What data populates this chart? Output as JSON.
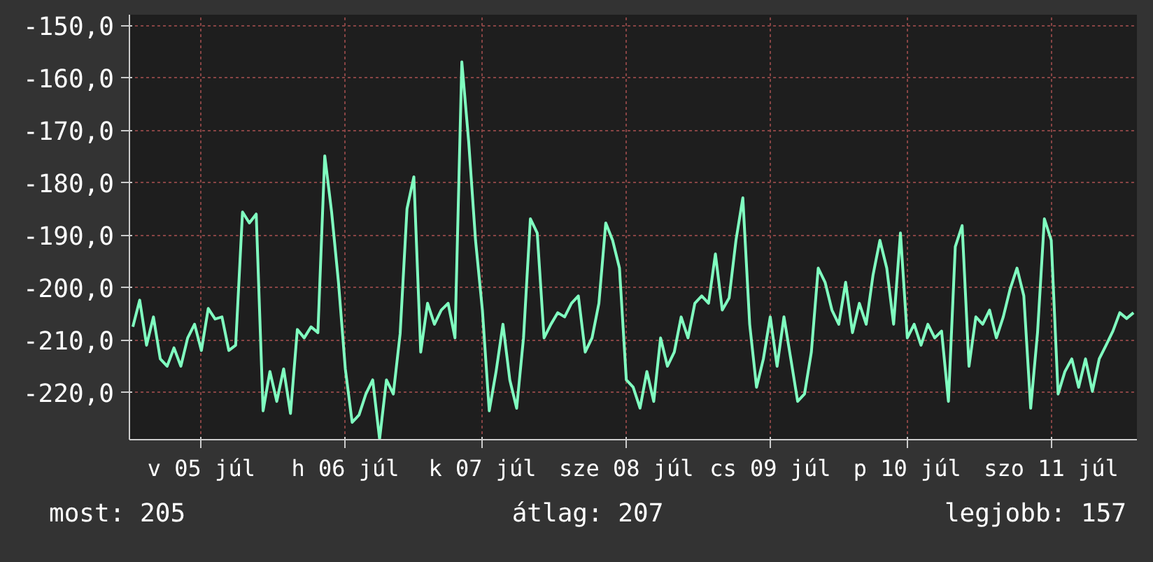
{
  "chart_data": {
    "type": "line",
    "grid": true,
    "line_style": "solid",
    "marker": "none",
    "ylim": [
      -229,
      -148
    ],
    "categories": [
      null,
      null,
      null,
      null,
      null,
      null,
      null,
      null,
      null,
      null,
      "v 05 júl",
      null,
      null,
      null,
      null,
      null,
      null,
      null,
      null,
      null,
      null,
      null,
      null,
      null,
      null,
      null,
      null,
      null,
      null,
      null,
      null,
      "h 06 júl",
      null,
      null,
      null,
      null,
      null,
      null,
      null,
      null,
      null,
      null,
      null,
      null,
      null,
      null,
      null,
      null,
      null,
      null,
      null,
      "k 07 júl",
      null,
      null,
      null,
      null,
      null,
      null,
      null,
      null,
      null,
      null,
      null,
      null,
      null,
      null,
      null,
      null,
      null,
      null,
      null,
      null,
      "sze 08 júl",
      null,
      null,
      null,
      null,
      null,
      null,
      null,
      null,
      null,
      null,
      null,
      null,
      null,
      null,
      null,
      null,
      null,
      null,
      null,
      null,
      "cs 09 júl",
      null,
      null,
      null,
      null,
      null,
      null,
      null,
      null,
      null,
      null,
      null,
      null,
      null,
      null,
      null,
      null,
      null,
      null,
      null,
      "p 10 júl",
      null,
      null,
      null,
      null,
      null,
      null,
      null,
      null,
      null,
      null,
      null,
      null,
      null,
      null,
      null,
      null,
      null,
      null,
      null,
      null,
      "szo 11 júl",
      null,
      null,
      null,
      null,
      null,
      null,
      null,
      null,
      null,
      null,
      null,
      null
    ],
    "yticks": [
      {
        "value": -150,
        "label": "-150,0"
      },
      {
        "value": -160,
        "label": "-160,0"
      },
      {
        "value": -170,
        "label": "-170,0"
      },
      {
        "value": -180,
        "label": "-180,0"
      },
      {
        "value": -190,
        "label": "-190,0"
      },
      {
        "value": -200,
        "label": "-200,0"
      },
      {
        "value": -210,
        "label": "-210,0"
      },
      {
        "value": -220,
        "label": "-220,0"
      }
    ],
    "annotations": [
      "most: 205",
      "átlag: 207",
      "legjobb: 157"
    ],
    "series": [
      {
        "color": "#80ffc0",
        "values": [
          -207.5,
          -202.4,
          -211,
          -205.6,
          -213.6,
          -215,
          -211.5,
          -215,
          -209.6,
          -207,
          -212,
          -204,
          -206,
          -205.6,
          -212,
          -211,
          -185.6,
          -187.7,
          -186,
          -223.5,
          -216,
          -221.7,
          -215.5,
          -224,
          -208,
          -209.6,
          -207.5,
          -208.6,
          -174.9,
          -185.6,
          -199,
          -215.5,
          -225.7,
          -224.3,
          -220.3,
          -217.6,
          -228.9,
          -217.6,
          -220.3,
          -208.8,
          -185,
          -178.9,
          -212.3,
          -203,
          -207,
          -204.3,
          -203,
          -209.6,
          -157,
          -172.2,
          -191,
          -204.3,
          -223.5,
          -216,
          -207,
          -217.6,
          -223,
          -209.6,
          -186.9,
          -189.6,
          -209.6,
          -207,
          -204.8,
          -205.6,
          -203,
          -201.6,
          -212.3,
          -209.6,
          -203,
          -187.7,
          -191,
          -196.3,
          -217.6,
          -219,
          -223,
          -216,
          -221.7,
          -209.6,
          -215,
          -212.3,
          -205.6,
          -209.6,
          -203,
          -201.6,
          -203,
          -193.6,
          -204.3,
          -202,
          -191,
          -182.9,
          -207,
          -219,
          -213.6,
          -205.6,
          -215,
          -205.6,
          -213.6,
          -221.7,
          -220.3,
          -212.3,
          -196.3,
          -199,
          -204.3,
          -207,
          -199,
          -208.6,
          -203,
          -207,
          -197.6,
          -191,
          -196.3,
          -207,
          -189.6,
          -209.6,
          -207,
          -211,
          -207,
          -209.6,
          -208.3,
          -221.7,
          -192.2,
          -188.2,
          -215,
          -205.6,
          -207,
          -204.3,
          -209.6,
          -205.6,
          -200.3,
          -196.3,
          -201.6,
          -223,
          -208.6,
          -186.9,
          -191,
          -220.3,
          -216,
          -213.6,
          -219,
          -213.6,
          -219.8,
          -213.6,
          -211,
          -208.3,
          -204.8,
          -205.9,
          -204.8
        ]
      }
    ]
  }
}
